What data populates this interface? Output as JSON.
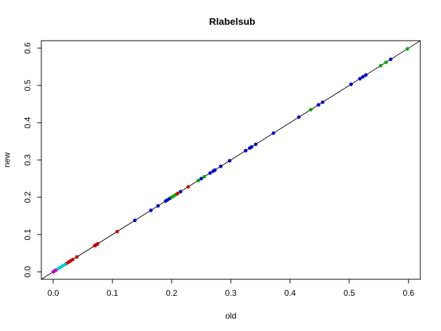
{
  "chart_data": {
    "type": "scatter",
    "title": "Rlabelsub",
    "xlabel": "old",
    "ylabel": "new",
    "xlim": [
      -0.02,
      0.62
    ],
    "ylim": [
      -0.02,
      0.62
    ],
    "xticks": [
      0.0,
      0.1,
      0.2,
      0.3,
      0.4,
      0.5,
      0.6
    ],
    "yticks": [
      0.0,
      0.1,
      0.2,
      0.3,
      0.4,
      0.5,
      0.6
    ],
    "xtick_labels": [
      "0.0",
      "0.1",
      "0.2",
      "0.3",
      "0.4",
      "0.5",
      "0.6"
    ],
    "ytick_labels": [
      "0.0",
      "0.1",
      "0.2",
      "0.3",
      "0.4",
      "0.5",
      "0.6"
    ],
    "reference_line": {
      "slope": 1,
      "intercept": 0,
      "color": "#000000"
    },
    "grid": false,
    "series": [
      {
        "color": "#0000cc",
        "x": [
          0.138,
          0.165,
          0.177,
          0.19,
          0.193,
          0.197,
          0.215,
          0.25,
          0.265,
          0.27,
          0.273,
          0.283,
          0.298,
          0.325,
          0.332,
          0.335,
          0.342,
          0.372,
          0.415,
          0.448,
          0.455,
          0.503,
          0.518,
          0.523,
          0.528,
          0.57
        ],
        "y": [
          0.138,
          0.165,
          0.177,
          0.19,
          0.193,
          0.197,
          0.215,
          0.25,
          0.265,
          0.27,
          0.273,
          0.283,
          0.298,
          0.325,
          0.332,
          0.335,
          0.342,
          0.372,
          0.415,
          0.448,
          0.455,
          0.503,
          0.518,
          0.523,
          0.528,
          0.57
        ]
      },
      {
        "color": "#00aa00",
        "x": [
          0.2,
          0.203,
          0.207,
          0.245,
          0.255,
          0.435,
          0.553,
          0.562,
          0.598
        ],
        "y": [
          0.2,
          0.203,
          0.207,
          0.245,
          0.255,
          0.435,
          0.553,
          0.562,
          0.598
        ]
      },
      {
        "color": "#cc0000",
        "x": [
          0.022,
          0.026,
          0.029,
          0.033,
          0.04,
          0.07,
          0.072,
          0.075,
          0.108,
          0.21,
          0.228
        ],
        "y": [
          0.022,
          0.026,
          0.029,
          0.033,
          0.04,
          0.07,
          0.072,
          0.075,
          0.108,
          0.21,
          0.228
        ]
      },
      {
        "color": "#00cccc",
        "x": [
          0.004,
          0.008,
          0.012,
          0.016,
          0.02
        ],
        "y": [
          0.004,
          0.008,
          0.012,
          0.016,
          0.02
        ]
      },
      {
        "color": "#cc00cc",
        "x": [
          0.0,
          0.002,
          0.004
        ],
        "y": [
          0.0,
          0.002,
          0.004
        ]
      }
    ]
  }
}
